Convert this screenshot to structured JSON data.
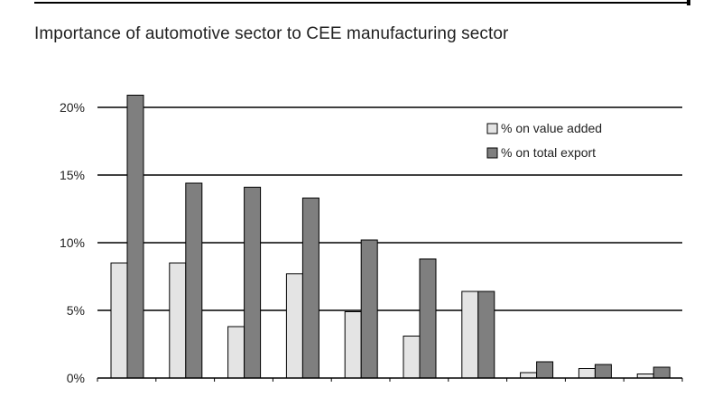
{
  "chart_data": {
    "type": "bar",
    "title": "Importance of automotive sector to CEE manufacturing sector",
    "categories": [
      "",
      "",
      "",
      "",
      "",
      "",
      "",
      "",
      "",
      ""
    ],
    "series": [
      {
        "name": "% on value added",
        "color": "#e4e4e4",
        "values": [
          8.5,
          8.5,
          3.8,
          7.7,
          4.9,
          3.1,
          6.4,
          0.4,
          0.7,
          0.3
        ]
      },
      {
        "name": "% on total export",
        "color": "#7f7f7f",
        "values": [
          20.9,
          14.4,
          14.1,
          13.3,
          10.2,
          8.8,
          6.4,
          1.2,
          1.0,
          0.8
        ]
      }
    ],
    "ylim": [
      0,
      20
    ],
    "yticks": [
      {
        "value": 0,
        "label": "0%"
      },
      {
        "value": 5,
        "label": "5%"
      },
      {
        "value": 10,
        "label": "10%"
      },
      {
        "value": 15,
        "label": "15%"
      },
      {
        "value": 20,
        "label": "20%"
      }
    ],
    "grid": true,
    "legend_position": "top-right"
  }
}
